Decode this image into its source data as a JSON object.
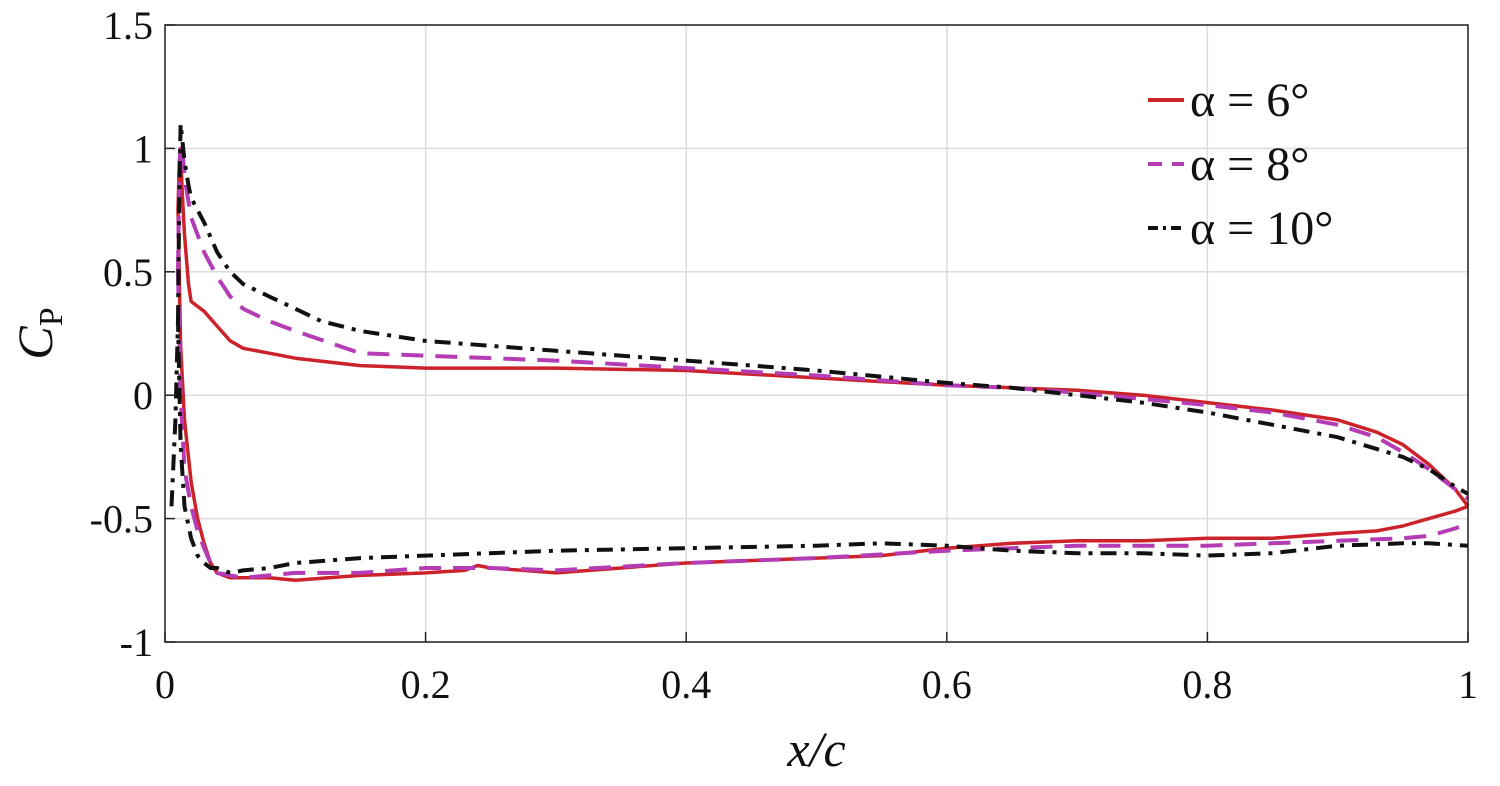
{
  "chart_data": {
    "type": "line",
    "title": "",
    "xlabel": "x/c",
    "ylabel": "C_P",
    "ylabel_main": "C",
    "ylabel_sub": "P",
    "xlim": [
      0,
      1
    ],
    "ylim": [
      -1,
      1.5
    ],
    "xticks": [
      0,
      0.2,
      0.4,
      0.6,
      0.8,
      1
    ],
    "xtick_labels": [
      "0",
      "0.2",
      "0.4",
      "0.6",
      "0.8",
      "1"
    ],
    "yticks": [
      1.5,
      1,
      0.5,
      0,
      -0.5,
      -1
    ],
    "ytick_labels": [
      "1.5",
      "1",
      "0.5",
      "0",
      "-0.5",
      "-1"
    ],
    "grid": true,
    "legend_position": "top-right",
    "series": [
      {
        "name": "α = 6°",
        "color": "#cc2229",
        "dash": "solid",
        "upper": {
          "x": [
            0.01,
            0.011,
            0.012,
            0.013,
            0.015,
            0.018,
            0.02,
            0.025,
            0.03,
            0.04,
            0.05,
            0.06,
            0.08,
            0.1,
            0.15,
            0.2,
            0.3,
            0.4,
            0.5,
            0.6,
            0.65,
            0.7,
            0.75,
            0.8,
            0.85,
            0.9,
            0.93,
            0.95,
            0.97,
            0.99,
            1.0
          ],
          "y": [
            0.75,
            0.95,
            1.0,
            0.85,
            0.65,
            0.45,
            0.38,
            0.36,
            0.34,
            0.28,
            0.22,
            0.19,
            0.17,
            0.15,
            0.12,
            0.11,
            0.11,
            0.1,
            0.07,
            0.04,
            0.03,
            0.02,
            0.0,
            -0.03,
            -0.06,
            -0.1,
            -0.15,
            -0.2,
            -0.28,
            -0.38,
            -0.45
          ]
        },
        "lower": {
          "x": [
            0.01,
            0.012,
            0.015,
            0.02,
            0.025,
            0.03,
            0.035,
            0.04,
            0.05,
            0.06,
            0.08,
            0.1,
            0.15,
            0.2,
            0.23,
            0.24,
            0.25,
            0.3,
            0.35,
            0.4,
            0.5,
            0.55,
            0.6,
            0.65,
            0.7,
            0.75,
            0.8,
            0.85,
            0.9,
            0.93,
            0.95,
            0.97,
            0.99,
            1.0
          ],
          "y": [
            0.75,
            0.2,
            -0.1,
            -0.35,
            -0.5,
            -0.6,
            -0.68,
            -0.72,
            -0.74,
            -0.74,
            -0.74,
            -0.75,
            -0.73,
            -0.72,
            -0.71,
            -0.69,
            -0.7,
            -0.72,
            -0.7,
            -0.68,
            -0.66,
            -0.65,
            -0.62,
            -0.6,
            -0.59,
            -0.59,
            -0.58,
            -0.58,
            -0.56,
            -0.55,
            -0.53,
            -0.5,
            -0.47,
            -0.45
          ]
        }
      },
      {
        "name": "α = 8°",
        "color": "#b43cb4",
        "dash": "dashed",
        "upper": {
          "x": [
            0.01,
            0.011,
            0.012,
            0.014,
            0.016,
            0.02,
            0.025,
            0.03,
            0.04,
            0.05,
            0.06,
            0.08,
            0.1,
            0.15,
            0.2,
            0.3,
            0.4,
            0.5,
            0.6,
            0.65,
            0.7,
            0.8,
            0.85,
            0.9,
            0.93,
            0.95,
            0.97,
            0.99,
            1.0
          ],
          "y": [
            0.5,
            0.9,
            1.02,
            0.95,
            0.85,
            0.72,
            0.65,
            0.58,
            0.48,
            0.4,
            0.35,
            0.3,
            0.26,
            0.17,
            0.16,
            0.14,
            0.11,
            0.08,
            0.04,
            0.03,
            0.01,
            -0.04,
            -0.07,
            -0.12,
            -0.17,
            -0.23,
            -0.3,
            -0.38,
            -0.42
          ]
        },
        "lower": {
          "x": [
            0.01,
            0.012,
            0.015,
            0.02,
            0.025,
            0.03,
            0.035,
            0.04,
            0.05,
            0.06,
            0.08,
            0.1,
            0.15,
            0.2,
            0.25,
            0.3,
            0.4,
            0.5,
            0.6,
            0.65,
            0.7,
            0.75,
            0.8,
            0.85,
            0.9,
            0.95,
            0.97,
            0.99,
            1.0
          ],
          "y": [
            0.5,
            0.0,
            -0.3,
            -0.45,
            -0.55,
            -0.62,
            -0.68,
            -0.72,
            -0.73,
            -0.74,
            -0.73,
            -0.72,
            -0.72,
            -0.7,
            -0.7,
            -0.71,
            -0.68,
            -0.66,
            -0.63,
            -0.62,
            -0.61,
            -0.61,
            -0.61,
            -0.6,
            -0.59,
            -0.58,
            -0.57,
            -0.54,
            -0.52
          ]
        }
      },
      {
        "name": "α = 10°",
        "color": "#111111",
        "dash": "dashdot",
        "upper": {
          "x": [
            0.01,
            0.011,
            0.012,
            0.013,
            0.015,
            0.018,
            0.02,
            0.025,
            0.03,
            0.04,
            0.05,
            0.06,
            0.08,
            0.1,
            0.12,
            0.15,
            0.2,
            0.3,
            0.4,
            0.5,
            0.6,
            0.65,
            0.7,
            0.75,
            0.8,
            0.85,
            0.9,
            0.95,
            0.97,
            0.99,
            1.0
          ],
          "y": [
            0.3,
            0.8,
            1.1,
            1.05,
            0.95,
            0.85,
            0.8,
            0.75,
            0.7,
            0.58,
            0.5,
            0.45,
            0.4,
            0.35,
            0.3,
            0.26,
            0.22,
            0.18,
            0.14,
            0.1,
            0.05,
            0.03,
            0.0,
            -0.03,
            -0.07,
            -0.12,
            -0.17,
            -0.25,
            -0.3,
            -0.37,
            -0.4
          ]
        },
        "lower": {
          "x": [
            0.005,
            0.008,
            0.01,
            0.012,
            0.015,
            0.02,
            0.025,
            0.03,
            0.035,
            0.04,
            0.05,
            0.06,
            0.08,
            0.1,
            0.15,
            0.2,
            0.3,
            0.4,
            0.5,
            0.55,
            0.6,
            0.65,
            0.7,
            0.75,
            0.8,
            0.85,
            0.9,
            0.95,
            0.97,
            1.0
          ],
          "y": [
            -0.45,
            -0.1,
            0.3,
            -0.2,
            -0.45,
            -0.58,
            -0.65,
            -0.68,
            -0.7,
            -0.7,
            -0.72,
            -0.71,
            -0.7,
            -0.68,
            -0.66,
            -0.65,
            -0.63,
            -0.62,
            -0.61,
            -0.6,
            -0.61,
            -0.63,
            -0.64,
            -0.64,
            -0.65,
            -0.64,
            -0.61,
            -0.6,
            -0.6,
            -0.61
          ]
        }
      }
    ]
  }
}
